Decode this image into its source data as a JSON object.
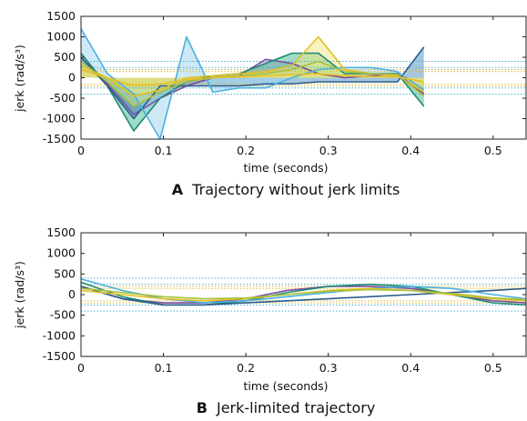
{
  "chart_data": [
    {
      "type": "line",
      "caption_letter": "A",
      "caption_text": "Trajectory without jerk limits",
      "xlabel": "time (seconds)",
      "ylabel": "jerk (rad/s³)",
      "xlim": [
        0,
        0.54
      ],
      "ylim": [
        -1500,
        1500
      ],
      "xticks": [
        0,
        0.1,
        0.2,
        0.3,
        0.4,
        0.5
      ],
      "xtick_labels": [
        "0",
        "0.1",
        "0.2",
        "0.3",
        "0.4",
        "0.5"
      ],
      "yticks": [
        1500,
        1000,
        500,
        0,
        -500,
        -1000,
        -1500
      ],
      "ytick_labels": [
        "1500",
        "1000",
        "500",
        "0",
        "-500",
        "-1000",
        "-1500"
      ],
      "limit_lines": {
        "blue": [
          400,
          250,
          -250,
          -400
        ],
        "yellow": [
          200,
          150,
          -150,
          -200
        ],
        "colors": {
          "blue": "#4aaed8",
          "yellow": "#e0b830"
        }
      },
      "series": [
        {
          "color": "#7a4c9c",
          "fill": "#b090c8",
          "x": [
            0,
            0.032,
            0.064,
            0.096,
            0.128,
            0.16,
            0.192,
            0.224,
            0.256,
            0.288,
            0.32,
            0.352,
            0.384,
            0.416
          ],
          "y": [
            500,
            -150,
            -900,
            -500,
            -200,
            0,
            50,
            450,
            350,
            100,
            0,
            50,
            100,
            -400
          ]
        },
        {
          "color": "#1f8a72",
          "fill": "#40b890",
          "x": [
            0,
            0.032,
            0.064,
            0.096,
            0.128,
            0.16,
            0.192,
            0.224,
            0.256,
            0.288,
            0.32,
            0.352,
            0.384,
            0.416
          ],
          "y": [
            600,
            -200,
            -1300,
            -500,
            -100,
            50,
            100,
            350,
            600,
            600,
            100,
            100,
            100,
            -700
          ]
        },
        {
          "color": "#2a5d8c",
          "fill": "#4a90c0",
          "x": [
            0,
            0.032,
            0.064,
            0.096,
            0.128,
            0.16,
            0.192,
            0.224,
            0.256,
            0.288,
            0.32,
            0.352,
            0.384,
            0.416
          ],
          "y": [
            500,
            -200,
            -1000,
            -200,
            -200,
            -200,
            -200,
            -150,
            -150,
            -100,
            -100,
            -100,
            -100,
            750
          ]
        },
        {
          "color": "#4ab0e0",
          "fill": "#9dd3ee",
          "x": [
            0,
            0.032,
            0.064,
            0.096,
            0.128,
            0.16,
            0.192,
            0.224,
            0.256,
            0.288,
            0.32,
            0.352,
            0.384,
            0.416
          ],
          "y": [
            1200,
            100,
            -400,
            -1500,
            1000,
            -350,
            -250,
            -250,
            0,
            200,
            250,
            250,
            150,
            -300
          ]
        },
        {
          "color": "#e0c020",
          "fill": "#f4e880",
          "x": [
            0,
            0.032,
            0.064,
            0.096,
            0.128,
            0.16,
            0.192,
            0.224,
            0.256,
            0.288,
            0.32,
            0.352,
            0.384,
            0.416
          ],
          "y": [
            300,
            0,
            -450,
            -300,
            0,
            50,
            100,
            150,
            300,
            1000,
            200,
            100,
            50,
            -350
          ]
        },
        {
          "color": "#a8c040",
          "fill": "#d8e888",
          "x": [
            0,
            0.032,
            0.064,
            0.096,
            0.128,
            0.16,
            0.192,
            0.224,
            0.256,
            0.288,
            0.32,
            0.352,
            0.384,
            0.416
          ],
          "y": [
            400,
            -100,
            -700,
            -350,
            -100,
            0,
            50,
            100,
            200,
            400,
            150,
            100,
            80,
            -450
          ]
        },
        {
          "color": "#e8c020",
          "fill": "#f0e070",
          "x": [
            0,
            0.032,
            0.064,
            0.096,
            0.128,
            0.16,
            0.192,
            0.224,
            0.256,
            0.288,
            0.32,
            0.352,
            0.384,
            0.416
          ],
          "y": [
            200,
            0,
            -200,
            -150,
            -50,
            0,
            20,
            50,
            80,
            100,
            50,
            30,
            20,
            -100
          ]
        }
      ]
    },
    {
      "type": "line",
      "caption_letter": "B",
      "caption_text": "Jerk-limited trajectory",
      "xlabel": "time (seconds)",
      "ylabel": "jerk (rad/s³)",
      "xlim": [
        0,
        0.54
      ],
      "ylim": [
        -1500,
        1500
      ],
      "xticks": [
        0,
        0.1,
        0.2,
        0.3,
        0.4,
        0.5
      ],
      "xtick_labels": [
        "0",
        "0.1",
        "0.2",
        "0.3",
        "0.4",
        "0.5"
      ],
      "yticks": [
        1500,
        1000,
        500,
        0,
        -500,
        -1000,
        -1500
      ],
      "ytick_labels": [
        "1500",
        "1000",
        "500",
        "0",
        "-500",
        "-1000",
        "-1500"
      ],
      "limit_lines": {
        "blue": [
          400,
          250,
          -250,
          -400
        ],
        "yellow": [
          200,
          150,
          -150,
          -200
        ],
        "colors": {
          "blue": "#4aaed8",
          "yellow": "#e0b830"
        }
      },
      "series": [
        {
          "color": "#7a4c9c",
          "x": [
            0,
            0.05,
            0.1,
            0.15,
            0.2,
            0.25,
            0.3,
            0.35,
            0.4,
            0.45,
            0.5,
            0.54
          ],
          "y": [
            200,
            -100,
            -200,
            -200,
            -100,
            100,
            200,
            200,
            150,
            0,
            -150,
            -200
          ]
        },
        {
          "color": "#1f8a72",
          "x": [
            0,
            0.05,
            0.1,
            0.15,
            0.2,
            0.25,
            0.3,
            0.35,
            0.4,
            0.45,
            0.5,
            0.54
          ],
          "y": [
            300,
            -50,
            -250,
            -250,
            -150,
            50,
            200,
            250,
            200,
            0,
            -200,
            -250
          ]
        },
        {
          "color": "#2a5d8c",
          "x": [
            0,
            0.05,
            0.1,
            0.15,
            0.2,
            0.25,
            0.3,
            0.35,
            0.4,
            0.45,
            0.5,
            0.54
          ],
          "y": [
            200,
            -100,
            -250,
            -250,
            -200,
            -150,
            -100,
            -50,
            0,
            50,
            100,
            150
          ]
        },
        {
          "color": "#4ab0e0",
          "x": [
            0,
            0.05,
            0.1,
            0.15,
            0.2,
            0.25,
            0.3,
            0.35,
            0.4,
            0.45,
            0.5,
            0.54
          ],
          "y": [
            380,
            100,
            -100,
            -200,
            -150,
            -50,
            50,
            150,
            200,
            150,
            0,
            -100
          ]
        },
        {
          "color": "#e0c020",
          "x": [
            0,
            0.05,
            0.1,
            0.15,
            0.2,
            0.25,
            0.3,
            0.35,
            0.4,
            0.45,
            0.5,
            0.54
          ],
          "y": [
            100,
            0,
            -100,
            -150,
            -100,
            0,
            100,
            150,
            100,
            0,
            -100,
            -150
          ]
        },
        {
          "color": "#a8c040",
          "x": [
            0,
            0.05,
            0.1,
            0.15,
            0.2,
            0.25,
            0.3,
            0.35,
            0.4,
            0.45,
            0.5,
            0.54
          ],
          "y": [
            150,
            50,
            -50,
            -100,
            -80,
            0,
            80,
            120,
            100,
            30,
            -80,
            -120
          ]
        }
      ]
    }
  ]
}
